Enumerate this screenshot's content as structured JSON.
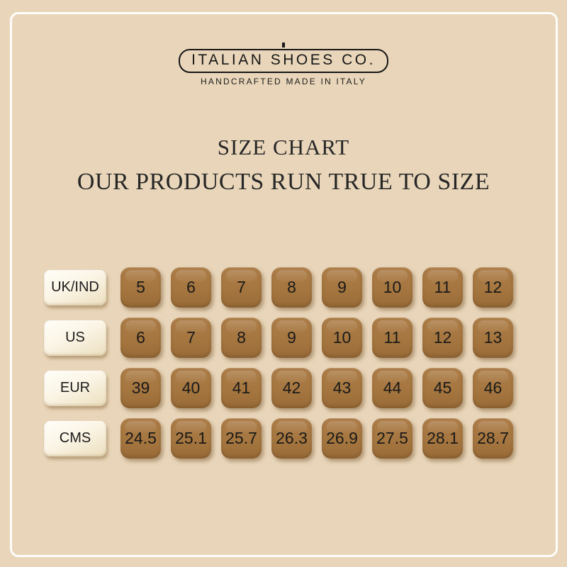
{
  "logo": {
    "brand": "ITALIAN SHOES CO.",
    "tagline": "HANDCRAFTED MADE IN ITALY"
  },
  "header": {
    "title": "SIZE CHART",
    "subtitle": "OUR PRODUCTS RUN TRUE TO SIZE"
  },
  "chart_data": {
    "type": "table",
    "title": "SIZE CHART",
    "subtitle": "OUR PRODUCTS RUN TRUE TO SIZE",
    "row_headers": [
      "UK/IND",
      "US",
      "EUR",
      "CMS"
    ],
    "rows": [
      [
        "5",
        "6",
        "7",
        "8",
        "9",
        "10",
        "11",
        "12"
      ],
      [
        "6",
        "7",
        "8",
        "9",
        "10",
        "11",
        "12",
        "13"
      ],
      [
        "39",
        "40",
        "41",
        "42",
        "43",
        "44",
        "45",
        "46"
      ],
      [
        "24.5",
        "25.1",
        "25.7",
        "26.3",
        "26.9",
        "27.5",
        "28.1",
        "28.7"
      ]
    ]
  },
  "colors": {
    "background": "#e9d6ba",
    "frame": "#fdfdfc",
    "tile": "#a5763f",
    "label_button": "#f8f1e0",
    "text": "#1b1b1b"
  }
}
